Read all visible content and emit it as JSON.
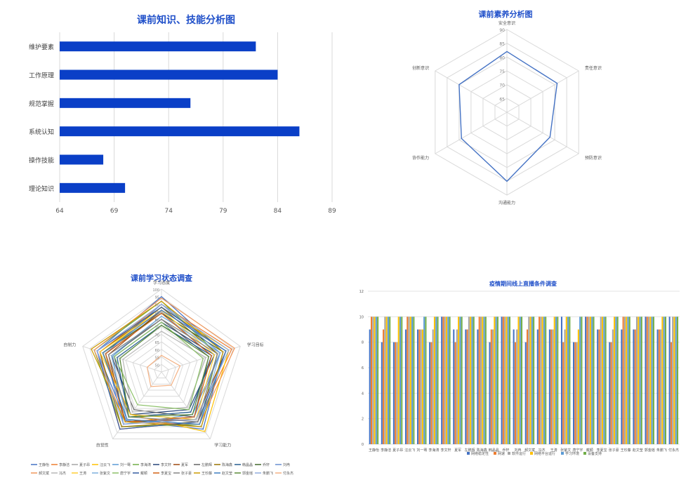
{
  "chart_data": [
    {
      "type": "bar",
      "orientation": "horizontal",
      "title": "课前知识、技能分析图",
      "categories": [
        "维护要素",
        "工作原理",
        "规范掌握",
        "系统认知",
        "操作技能",
        "理论知识"
      ],
      "values": [
        82,
        84,
        76,
        86,
        68,
        70
      ],
      "xlim": [
        64,
        89
      ],
      "xticks": [
        "64",
        "69",
        "74",
        "79",
        "84",
        "89"
      ],
      "color": "#0a3fc7",
      "grid": true
    },
    {
      "type": "radar",
      "title": "课前素养分析图",
      "axes": [
        "安全意识",
        "责任意识",
        "预防意识",
        "沟通能力",
        "协作能力",
        "创新意识"
      ],
      "values": [
        82,
        81,
        78,
        85,
        79,
        80
      ],
      "rlim": [
        60,
        90
      ],
      "ticks": [
        "65",
        "70",
        "75",
        "80",
        "85",
        "90"
      ],
      "color": "#4472c4"
    },
    {
      "type": "radar",
      "title": "课前学习状态调查",
      "axes": [
        "学习态度",
        "学习目标",
        "学习能力",
        "自觉性",
        "自制力"
      ],
      "rlim": [
        45,
        100
      ],
      "ticks": [
        "50",
        "55",
        "60",
        "65",
        "70",
        "75",
        "80",
        "85",
        "90",
        "95",
        "100"
      ],
      "legend": [
        "王静怡",
        "李静洁",
        "夏子昂",
        "汪云飞",
        "刘一骞",
        "李海涛",
        "李文轩",
        "夏军",
        "左鹏辉",
        "陈海鑫",
        "韩晶晶",
        "乔轩",
        "刘冉",
        "郝文斌",
        "冯杰",
        "王涛",
        "张紫文",
        "唐宁宇",
        "戴颖",
        "李夏宝",
        "张子豪",
        "王珍藤",
        "赵文莹",
        "郭金瑶",
        "朱鹏飞",
        "付永杰"
      ],
      "colors": [
        "#4472c4",
        "#ed7d31",
        "#a5a5a5",
        "#ffc000",
        "#5b9bd5",
        "#70ad47",
        "#264478",
        "#9e480e",
        "#636363",
        "#997300",
        "#255e91",
        "#43682b",
        "#698ed0",
        "#f1975a",
        "#b7b7b7",
        "#ffcd33",
        "#7cafdd",
        "#8cc168",
        "#335aa1",
        "#d26012",
        "#848484",
        "#cc9a00",
        "#3c7dc1",
        "#5a8a39",
        "#8faadc",
        "#f4b183"
      ],
      "series_values": [
        [
          95,
          88,
          92,
          85,
          90
        ],
        [
          90,
          94,
          86,
          92,
          88
        ],
        [
          85,
          80,
          78,
          82,
          84
        ],
        [
          88,
          92,
          94,
          80,
          86
        ],
        [
          82,
          86,
          80,
          88,
          79
        ],
        [
          92,
          84,
          88,
          90,
          92
        ],
        [
          78,
          82,
          76,
          80,
          78
        ],
        [
          86,
          90,
          84,
          86,
          82
        ],
        [
          80,
          78,
          82,
          76,
          80
        ],
        [
          88,
          84,
          86,
          90,
          88
        ],
        [
          76,
          80,
          78,
          82,
          76
        ],
        [
          84,
          88,
          90,
          84,
          86
        ],
        [
          90,
          86,
          82,
          88,
          84
        ],
        [
          94,
          96,
          88,
          86,
          92
        ],
        [
          72,
          76,
          74,
          78,
          72
        ],
        [
          86,
          82,
          84,
          80,
          88
        ],
        [
          82,
          86,
          88,
          84,
          80
        ],
        [
          78,
          74,
          76,
          72,
          78
        ],
        [
          88,
          90,
          86,
          92,
          90
        ],
        [
          84,
          80,
          82,
          86,
          84
        ],
        [
          80,
          84,
          86,
          82,
          82
        ],
        [
          92,
          88,
          90,
          86,
          94
        ],
        [
          86,
          90,
          88,
          84,
          86
        ],
        [
          76,
          78,
          80,
          82,
          74
        ],
        [
          90,
          92,
          84,
          88,
          90
        ],
        [
          56,
          58,
          56,
          57,
          55
        ]
      ]
    },
    {
      "type": "bar",
      "title": "疫情期间线上直播条件调查",
      "ylim": [
        0,
        12
      ],
      "yticks": [
        "0",
        "2",
        "4",
        "6",
        "8",
        "10",
        "12"
      ],
      "categories": [
        "王静怡",
        "李静洁",
        "夏子昂",
        "汪云飞",
        "刘一骞",
        "李海涛",
        "李文轩",
        "夏军",
        "左鹏辉",
        "陈海鑫",
        "韩晶晶",
        "乔轩",
        "刘冉",
        "郝文斌",
        "冯杰",
        "王涛",
        "张紫文",
        "唐宁宇",
        "戴颖",
        "李夏宝",
        "张子豪",
        "王珍藤",
        "赵文莹",
        "郭金瑶",
        "朱鹏飞",
        "付永杰"
      ],
      "series": [
        {
          "name": "网络稳定性",
          "color": "#4472c4",
          "values": [
            9,
            8,
            8,
            9,
            9,
            8,
            10,
            9,
            9,
            9,
            8,
            10,
            9,
            8,
            9,
            9,
            10,
            8,
            10,
            9,
            8,
            9,
            9,
            10,
            9,
            10
          ]
        },
        {
          "name": "网速",
          "color": "#ed7d31",
          "values": [
            10,
            9,
            8,
            10,
            9,
            8,
            10,
            8,
            9,
            10,
            9,
            10,
            8,
            9,
            10,
            9,
            8,
            8,
            10,
            9,
            8,
            10,
            9,
            10,
            9,
            8
          ]
        },
        {
          "name": "软件运行",
          "color": "#a5a5a5",
          "values": [
            10,
            10,
            8,
            10,
            9,
            9,
            10,
            9,
            10,
            10,
            9,
            10,
            9,
            10,
            10,
            9,
            9,
            8,
            10,
            10,
            9,
            10,
            10,
            10,
            9,
            10
          ]
        },
        {
          "name": "网络平台运行",
          "color": "#ffc000",
          "values": [
            10,
            10,
            10,
            10,
            9,
            10,
            10,
            10,
            10,
            10,
            10,
            10,
            10,
            10,
            10,
            10,
            10,
            9,
            10,
            10,
            10,
            10,
            10,
            10,
            10,
            10
          ]
        },
        {
          "name": "学习环境",
          "color": "#5b9bd5",
          "values": [
            10,
            10,
            10,
            10,
            10,
            10,
            10,
            10,
            10,
            10,
            10,
            10,
            10,
            10,
            10,
            10,
            10,
            10,
            10,
            10,
            10,
            10,
            10,
            10,
            10,
            10
          ]
        },
        {
          "name": "设备支持",
          "color": "#70ad47",
          "values": [
            10,
            10,
            10,
            10,
            10,
            10,
            10,
            10,
            10,
            10,
            10,
            10,
            10,
            10,
            10,
            10,
            10,
            10,
            10,
            10,
            10,
            10,
            10,
            10,
            10,
            10
          ]
        }
      ]
    }
  ]
}
